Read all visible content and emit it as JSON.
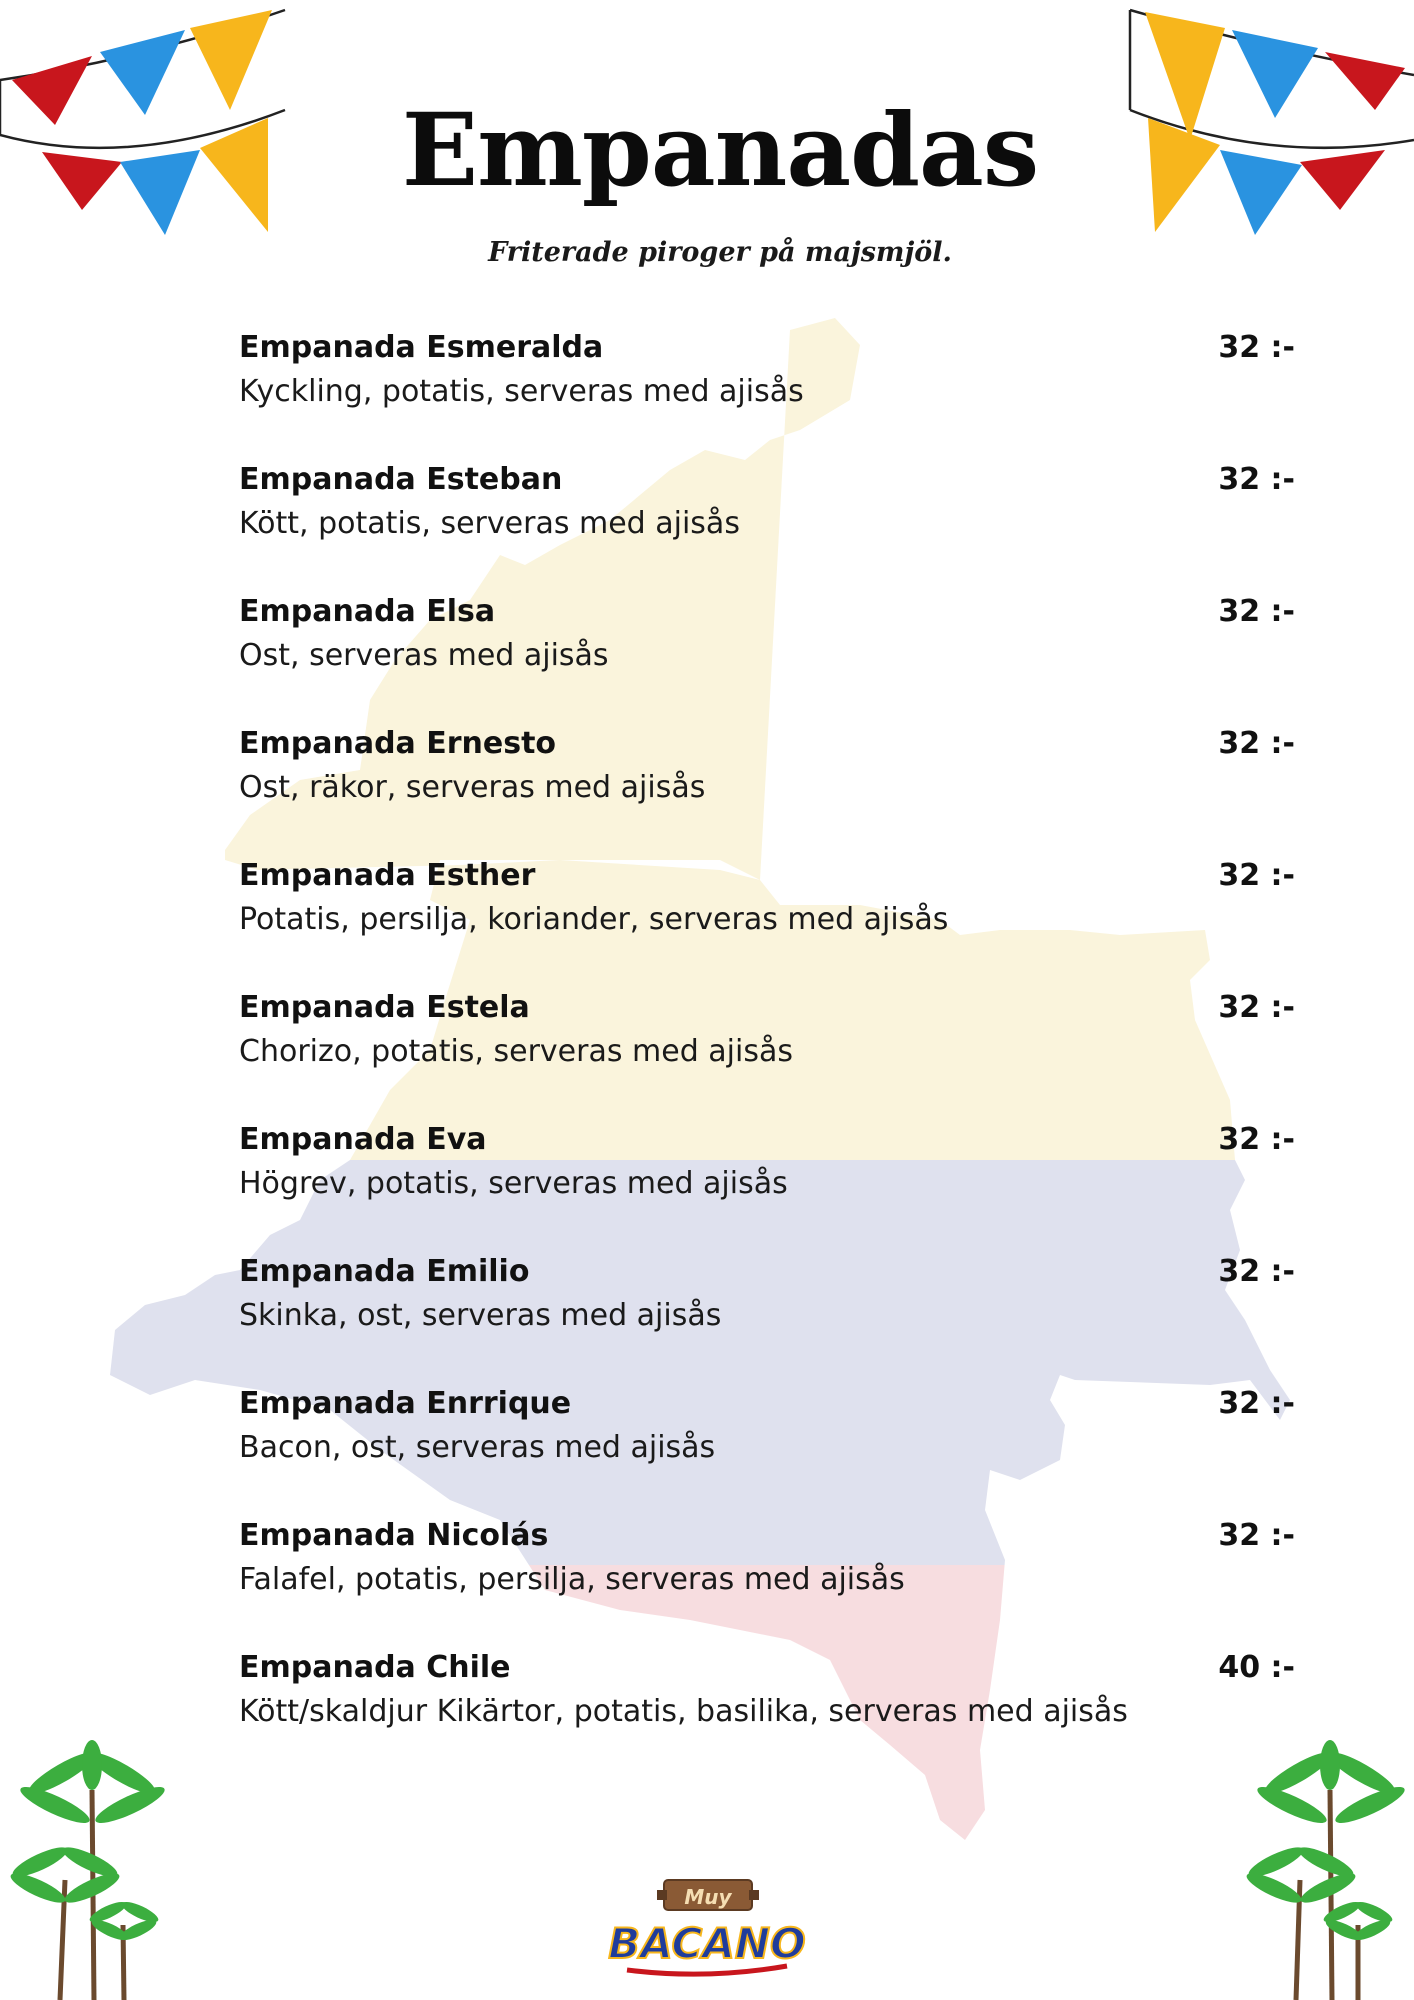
{
  "header": {
    "title": "Empanadas",
    "subtitle": "Friterade piroger på majsmjöl."
  },
  "menu": {
    "items": [
      {
        "name": "Empanada Esmeralda",
        "desc": "Kyckling, potatis, serveras med ajisås",
        "price": "32 :-"
      },
      {
        "name": "Empanada Esteban",
        "desc": "Kött, potatis, serveras med ajisås",
        "price": "32 :-"
      },
      {
        "name": "Empanada Elsa",
        "desc": "Ost, serveras med ajisås",
        "price": "32 :-"
      },
      {
        "name": "Empanada Ernesto",
        "desc": "Ost, räkor, serveras med ajisås",
        "price": "32 :-"
      },
      {
        "name": "Empanada Esther",
        "desc": "Potatis, persilja, koriander, serveras med ajisås",
        "price": "32 :-"
      },
      {
        "name": "Empanada Estela",
        "desc": "Chorizo, potatis, serveras med ajisås",
        "price": "32 :-"
      },
      {
        "name": "Empanada Eva",
        "desc": "Högrev, potatis, serveras med ajisås",
        "price": "32 :-"
      },
      {
        "name": "Empanada Emilio",
        "desc": "Skinka, ost, serveras med ajisås",
        "price": "32 :-"
      },
      {
        "name": "Empanada Enrrique",
        "desc": "Bacon, ost, serveras med ajisås",
        "price": "32 :-"
      },
      {
        "name": "Empanada Nicolás",
        "desc": "Falafel, potatis, persilja, serveras med ajisås",
        "price": "32 :-"
      },
      {
        "name": "Empanada Chile",
        "desc": "Kött/skaldjur Kikärtor, potatis, basilika, serveras med ajisås",
        "price": "40 :-"
      }
    ]
  },
  "logo": {
    "top_text": "Muy",
    "main_text": "BACANO"
  },
  "colors": {
    "map_yellow": "#faf4dc",
    "map_blue": "#dfe1ee",
    "map_red": "#f7dde0",
    "flag_red": "#c8161d",
    "flag_blue": "#2a93e0",
    "flag_yellow": "#f7b61c",
    "palm_green": "#3cae3f",
    "palm_trunk": "#6b4a2e"
  }
}
